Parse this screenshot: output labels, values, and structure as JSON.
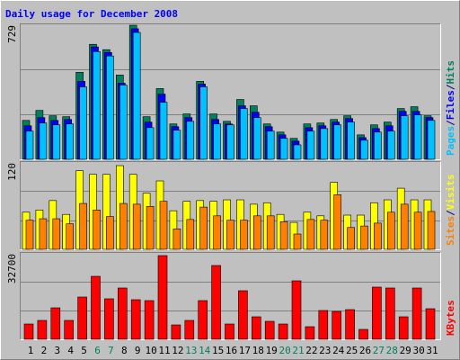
{
  "chart_data": [
    {
      "type": "bar",
      "title": "Daily usage for December 2008",
      "ylim": [
        0,
        729
      ],
      "yticks": [
        729
      ],
      "grid": true,
      "legend_separator": "/",
      "series": [
        {
          "name": "Pages",
          "color": "#00c0ff",
          "values": [
            152,
            196,
            186,
            191,
            391,
            582,
            558,
            401,
            685,
            171,
            308,
            157,
            205,
            391,
            191,
            186,
            274,
            225,
            152,
            113,
            78,
            152,
            166,
            186,
            201,
            103,
            147,
            152,
            235,
            240,
            210
          ]
        },
        {
          "name": "Files",
          "color": "#0000ff",
          "values": [
            181,
            225,
            210,
            215,
            421,
            607,
            577,
            411,
            705,
            201,
            352,
            176,
            225,
            406,
            215,
            191,
            289,
            254,
            176,
            132,
            98,
            171,
            181,
            201,
            220,
            117,
            166,
            181,
            259,
            259,
            225
          ]
        },
        {
          "name": "Hits",
          "color": "#00805c",
          "values": [
            210,
            264,
            235,
            230,
            470,
            621,
            592,
            455,
            724,
            230,
            382,
            191,
            245,
            421,
            245,
            205,
            323,
            289,
            191,
            147,
            113,
            191,
            196,
            215,
            235,
            132,
            186,
            201,
            274,
            284,
            235
          ]
        }
      ]
    },
    {
      "type": "bar",
      "ylim": [
        0,
        120
      ],
      "yticks": [
        120
      ],
      "grid": true,
      "legend_separator": "/",
      "series": [
        {
          "name": "Sites",
          "color": "#ff8000",
          "values": [
            40,
            42,
            42,
            35,
            63,
            54,
            45,
            63,
            62,
            59,
            66,
            28,
            41,
            58,
            46,
            40,
            40,
            46,
            46,
            38,
            21,
            41,
            40,
            75,
            30,
            32,
            36,
            51,
            62,
            51,
            52
          ]
        },
        {
          "name": "Visits",
          "color": "#ffff00",
          "values": [
            51,
            54,
            67,
            48,
            108,
            103,
            103,
            115,
            103,
            77,
            94,
            53,
            66,
            67,
            66,
            68,
            68,
            62,
            64,
            48,
            37,
            51,
            46,
            92,
            47,
            47,
            64,
            68,
            84,
            68,
            68
          ]
        }
      ]
    },
    {
      "type": "bar",
      "ylim": [
        0,
        32700
      ],
      "yticks": [
        32700
      ],
      "grid": true,
      "categories": [
        "1",
        "2",
        "3",
        "4",
        "5",
        "6",
        "7",
        "8",
        "9",
        "10",
        "11",
        "12",
        "13",
        "14",
        "15",
        "16",
        "17",
        "18",
        "19",
        "20",
        "21",
        "22",
        "23",
        "24",
        "25",
        "26",
        "27",
        "28",
        "29",
        "30",
        "31"
      ],
      "label_colors": [
        "#000000",
        "#000000",
        "#000000",
        "#000000",
        "#000000",
        "#00805c",
        "#00805c",
        "#000000",
        "#000000",
        "#000000",
        "#000000",
        "#000000",
        "#00805c",
        "#00805c",
        "#000000",
        "#000000",
        "#000000",
        "#000000",
        "#000000",
        "#00805c",
        "#00805c",
        "#000000",
        "#000000",
        "#000000",
        "#000000",
        "#000000",
        "#00805c",
        "#00805c",
        "#000000",
        "#000000",
        "#000000"
      ],
      "series": [
        {
          "name": "KBytes",
          "color": "#ff0000",
          "values": [
            5790,
            7150,
            11920,
            7150,
            16010,
            23840,
            15330,
            19420,
            14990,
            14650,
            31680,
            5450,
            7150,
            14650,
            27930,
            5790,
            18390,
            8520,
            6810,
            5790,
            22140,
            4770,
            10900,
            10560,
            11240,
            3750,
            19760,
            19420,
            8520,
            19420,
            11580
          ]
        }
      ]
    }
  ]
}
